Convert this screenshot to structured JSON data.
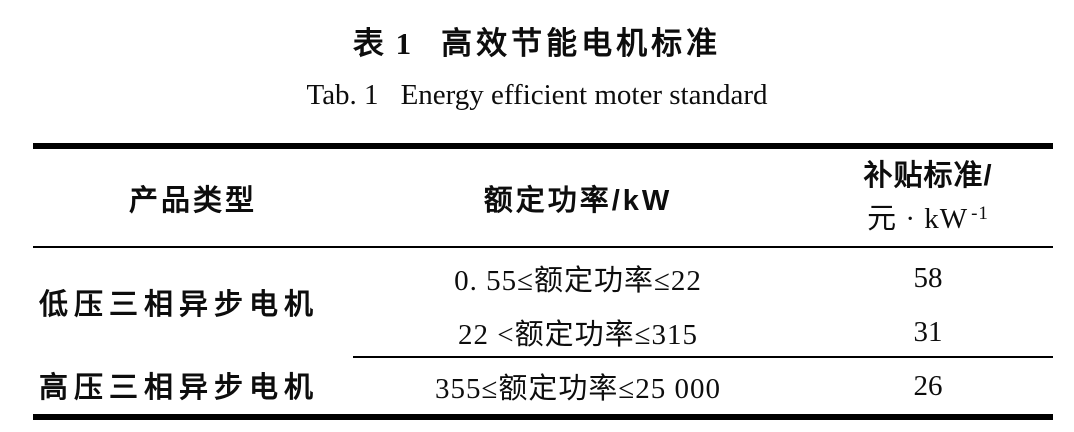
{
  "page": {
    "background": "#ffffff",
    "text_color": "#0d0d0d",
    "rule_color": "#000000"
  },
  "title": {
    "zh_label": "表 1",
    "zh_text": "高效节能电机标准",
    "en_label": "Tab. 1",
    "en_text": "Energy efficient moter standard"
  },
  "table": {
    "headers": {
      "product": "产品类型",
      "power": "额定功率/kW",
      "subsidy_line1": "补贴标准/",
      "subsidy_unit_base": "元 · kW",
      "subsidy_unit_exp": "-1"
    },
    "groups": [
      {
        "product": "低压三相异步电机",
        "entries": [
          {
            "power_range": "0. 55≤额定功率≤22",
            "subsidy": "58"
          },
          {
            "power_range": "22 <额定功率≤315",
            "subsidy": "31"
          }
        ]
      },
      {
        "product": "高压三相异步电机",
        "entries": [
          {
            "power_range": "355≤额定功率≤25 000",
            "subsidy": "26"
          }
        ]
      }
    ]
  },
  "chart_data": {
    "type": "table",
    "title": "表1 高效节能电机标准 / Tab. 1 Energy efficient moter standard",
    "columns": [
      "产品类型",
      "额定功率/kW",
      "补贴标准/元·kW⁻¹"
    ],
    "rows": [
      [
        "低压三相异步电机",
        "0.55≤额定功率≤22",
        58
      ],
      [
        "低压三相异步电机",
        "22<额定功率≤315",
        31
      ],
      [
        "高压三相异步电机",
        "355≤额定功率≤25 000",
        26
      ]
    ]
  }
}
